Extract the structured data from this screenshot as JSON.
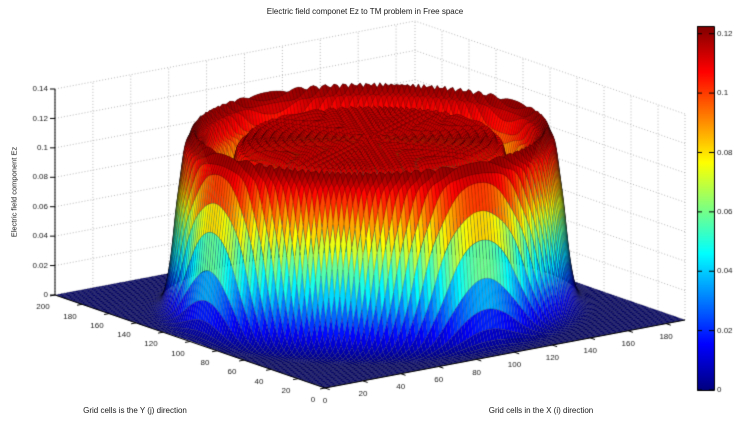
{
  "chart_data": {
    "type": "heatmap",
    "render_style": "3d-surface-mesh",
    "title": "Electric field componet Ez to TM problem in Free space",
    "xlabel": "Grid cells in the X (i) direction",
    "ylabel": "Grid cells is the Y (j) direction",
    "zlabel": "Electric field component Ez",
    "xlim": [
      0,
      190
    ],
    "ylim": [
      0,
      200
    ],
    "zlim": [
      0,
      0.14
    ],
    "x_ticks": [
      0,
      20,
      40,
      60,
      80,
      100,
      120,
      140,
      160,
      180
    ],
    "y_ticks": [
      0,
      20,
      40,
      60,
      80,
      100,
      120,
      140,
      160,
      180,
      200
    ],
    "z_ticks": [
      0,
      0.02,
      0.04,
      0.06,
      0.08,
      0.1,
      0.12,
      0.14
    ],
    "view": {
      "azimuth_deg": -37.5,
      "elevation_deg": 30
    },
    "grid": "dotted-back-walls",
    "grid_color": "#a6a6a6",
    "colormap": "jet",
    "caxis": [
      0,
      0.1226
    ],
    "mesh_edge_color": "#000000",
    "colorbar": {
      "location": "right",
      "ticks": [
        0,
        0.02,
        0.04,
        0.06,
        0.08,
        0.1,
        0.12
      ],
      "tick_labels": [
        "0",
        "0.02",
        "0.04",
        "0.06",
        "0.08",
        "0.1",
        "0.12"
      ]
    },
    "surface_model": {
      "description": "Steady-state Ez of a 2D FDTD TM problem: flat-topped cylindrical plateau (peak ~0.122) centered near grid cell (95,100); slightly raised dark-red rim at radius ~77 cells, shallow yellow trough ring at radius ~64, fine concentric ripples on the plateau, steep jet-colored sidewalls between radius ~80 and ~90 dropping to the flat Ez=0 dark-blue floor",
      "center_x": 95,
      "center_y": 100,
      "plateau_value": 0.1145,
      "ripple_fraction": 0.018,
      "ripple_wavelength": 3.8,
      "trough_depth": 0.034,
      "trough_radius": 64,
      "trough_width": 5.5,
      "rim_height": 0.009,
      "rim_radius": 77,
      "rim_width": 4,
      "outer_radius": 84,
      "wall_width": 2,
      "floor_value": 0,
      "peak_value": 0.122,
      "mesh_step_cells": 1.7
    }
  }
}
